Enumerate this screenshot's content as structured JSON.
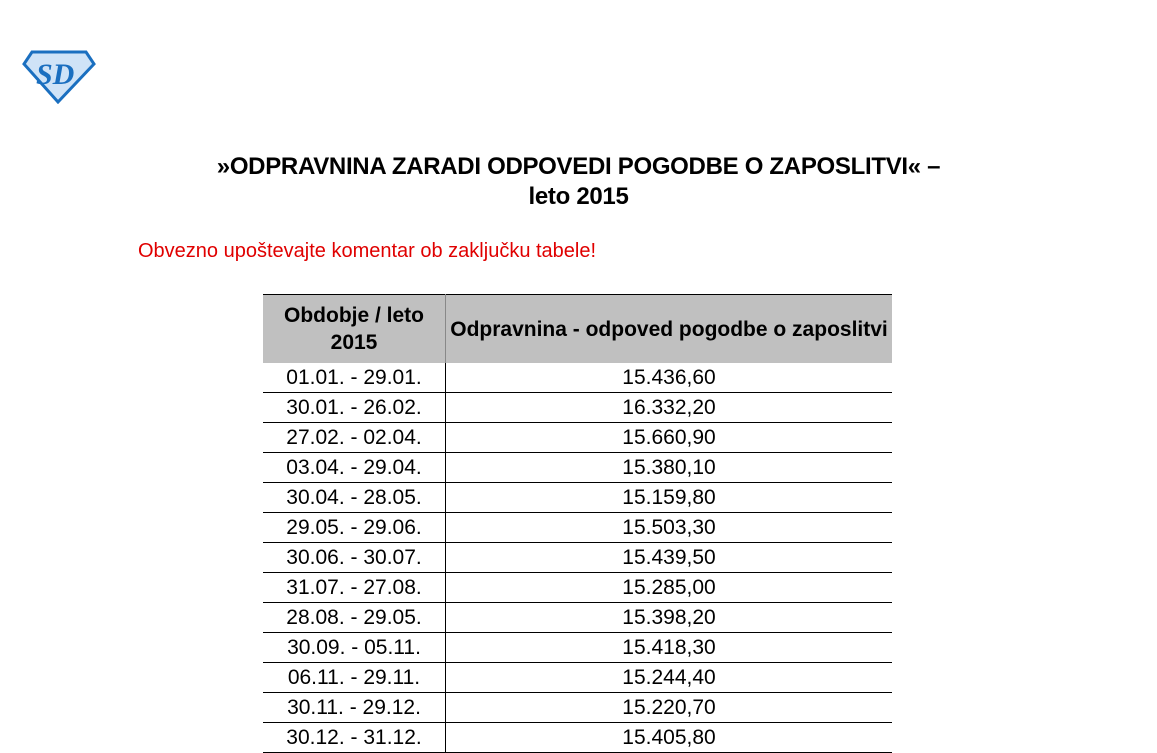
{
  "logo": {
    "text": "SD",
    "colors": {
      "outline": "#1a6fc0",
      "fill": "#cfe3f7"
    }
  },
  "title": {
    "line1": "»ODPRAVNINA ZARADI ODPOVEDI POGODBE O ZAPOSLITVI« –",
    "line2": "leto 2015"
  },
  "note": {
    "text": "Obvezno upoštevajte komentar ob zaključku tabele!",
    "color": "#e00000"
  },
  "table": {
    "headers": [
      "Obdobje / leto 2015",
      "Odpravnina - odpoved pogodbe o zaposlitvi"
    ],
    "rows": [
      [
        "01.01. - 29.01.",
        "15.436,60"
      ],
      [
        "30.01. - 26.02.",
        "16.332,20"
      ],
      [
        "27.02. - 02.04.",
        "15.660,90"
      ],
      [
        "03.04. - 29.04.",
        "15.380,10"
      ],
      [
        "30.04. - 28.05.",
        "15.159,80"
      ],
      [
        "29.05. - 29.06.",
        "15.503,30"
      ],
      [
        "30.06. - 30.07.",
        "15.439,50"
      ],
      [
        "31.07. - 27.08.",
        "15.285,00"
      ],
      [
        "28.08. - 29.05.",
        "15.398,20"
      ],
      [
        "30.09. - 05.11.",
        "15.418,30"
      ],
      [
        "06.11. - 29.11.",
        "15.244,40"
      ],
      [
        "30.11. - 29.12.",
        "15.220,70"
      ],
      [
        "30.12. - 31.12.",
        "15.405,80"
      ]
    ]
  }
}
